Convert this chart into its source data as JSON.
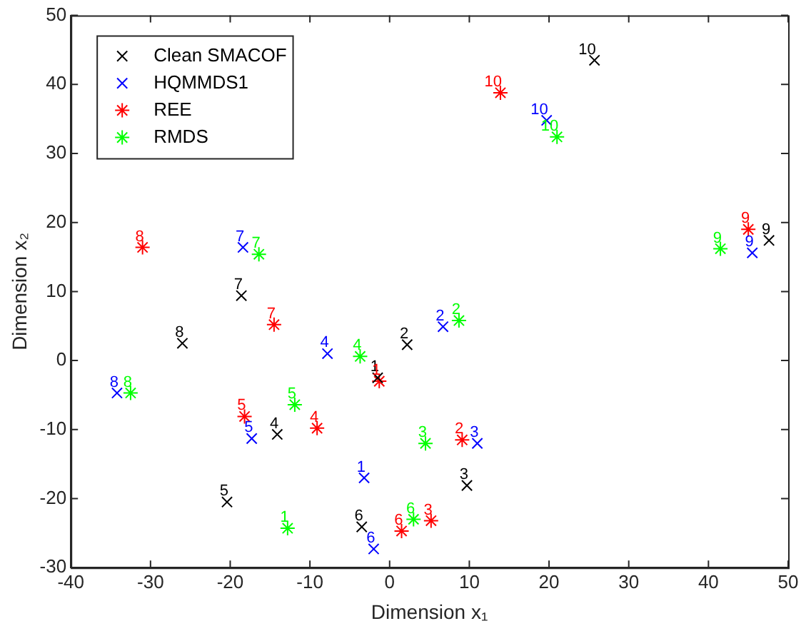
{
  "chart_data": {
    "type": "scatter",
    "xlabel": "Dimension x₁",
    "ylabel": "Dimension x₂",
    "xlim": [
      -40,
      50
    ],
    "xticks": [
      -40,
      -30,
      -20,
      -10,
      0,
      10,
      20,
      30,
      40,
      50
    ],
    "ylim": [
      -30,
      50
    ],
    "yticks": [
      -30,
      -20,
      -10,
      0,
      10,
      20,
      30,
      40,
      50
    ],
    "grid": false,
    "legend": "top left",
    "series": [
      {
        "name": "Clean SMACOF",
        "color": "#000000",
        "x": [
          -1.5,
          2.2,
          9.7,
          -14.1,
          -20.4,
          -3.5,
          -18.6,
          -26,
          47.6,
          25.7
        ],
        "values": [
          -2.5,
          2.3,
          -18.1,
          -10.7,
          -20.5,
          -24.1,
          9.4,
          2.5,
          17.4,
          43.5
        ]
      },
      {
        "name": "HQMMDS1",
        "color": "#0000ff",
        "x": [
          -3.2,
          6.7,
          11,
          -7.8,
          -17.3,
          -2,
          -18.4,
          -34.2,
          45.5,
          19.7
        ],
        "values": [
          -17,
          4.9,
          -12,
          1,
          -11.3,
          -27.3,
          16.4,
          -4.7,
          15.6,
          34.8
        ]
      },
      {
        "name": "REE",
        "color": "#ff0000",
        "marker": "cross",
        "x": [
          -1.3,
          9.1,
          5.2,
          -9.1,
          -18.2,
          1.5,
          -14.5,
          -31,
          45,
          13.9
        ],
        "values": [
          -3,
          -11.5,
          -23.2,
          -9.8,
          -8.1,
          -24.7,
          5.2,
          16.4,
          19,
          38.8
        ]
      },
      {
        "name": "RMDS",
        "color": "#00ff00",
        "marker": "cross",
        "x": [
          -12.8,
          8.7,
          4.5,
          -3.7,
          -11.9,
          3,
          -16.4,
          -32.5,
          41.5,
          21
        ],
        "values": [
          -24.3,
          5.8,
          -12,
          0.6,
          -6.4,
          -23,
          15.4,
          -4.7,
          16.2,
          32.4
        ]
      }
    ],
    "annotations": [
      {
        "text": "1",
        "x": -1.5,
        "y": -2.5
      },
      {
        "text": "2",
        "x": 2.2,
        "y": 2.3
      },
      {
        "text": "3",
        "x": 9.7,
        "y": -18.1
      },
      {
        "text": "4",
        "x": -14.1,
        "y": -10.7
      },
      {
        "text": "5",
        "x": -20.4,
        "y": -20.5
      },
      {
        "text": "6",
        "x": -3.5,
        "y": -24.1
      },
      {
        "text": "7",
        "x": -18.6,
        "y": 9.4
      },
      {
        "text": "8",
        "x": -26,
        "y": 2.5
      },
      {
        "text": "9",
        "x": 47.6,
        "y": 17.4
      },
      {
        "text": "10",
        "x": 25.7,
        "y": 43.5
      },
      {
        "text": "1",
        "x": -3.2,
        "y": -17
      },
      {
        "text": "2",
        "x": 6.7,
        "y": 4.9
      },
      {
        "text": "3",
        "x": 11,
        "y": -12
      },
      {
        "text": "4",
        "x": -7.8,
        "y": 1
      },
      {
        "text": "5",
        "x": -17.3,
        "y": -11.3
      },
      {
        "text": "6",
        "x": -2,
        "y": -27.3
      },
      {
        "text": "7",
        "x": -18.4,
        "y": 16.4
      },
      {
        "text": "8",
        "x": -34.2,
        "y": -4.7
      },
      {
        "text": "9",
        "x": 45.5,
        "y": 15.6
      },
      {
        "text": "10",
        "x": 19.7,
        "y": 34.8
      },
      {
        "text": "1",
        "x": -1.3,
        "y": -3
      },
      {
        "text": "2",
        "x": 9.1,
        "y": -11.5
      },
      {
        "text": "3",
        "x": 5.2,
        "y": -23.2
      },
      {
        "text": "4",
        "x": -9.1,
        "y": -9.8
      },
      {
        "text": "5",
        "x": -18.2,
        "y": -8.1
      },
      {
        "text": "6",
        "x": 1.5,
        "y": -24.7
      },
      {
        "text": "7",
        "x": -14.5,
        "y": 5.2
      },
      {
        "text": "8",
        "x": -31,
        "y": 16.4
      },
      {
        "text": "9",
        "x": 45,
        "y": 19
      },
      {
        "text": "10",
        "x": 13.9,
        "y": 38.8
      },
      {
        "text": "1",
        "x": -12.8,
        "y": -24.3
      },
      {
        "text": "2",
        "x": 8.7,
        "y": 5.8
      },
      {
        "text": "3",
        "x": 4.5,
        "y": -12
      },
      {
        "text": "4",
        "x": -3.7,
        "y": 0.6
      },
      {
        "text": "5",
        "x": -11.9,
        "y": -6.4
      },
      {
        "text": "6",
        "x": 3,
        "y": -23
      },
      {
        "text": "7",
        "x": -16.4,
        "y": 15.4
      },
      {
        "text": "8",
        "x": -32.5,
        "y": -4.7
      },
      {
        "text": "9",
        "x": 41.5,
        "y": 16.2
      },
      {
        "text": "10",
        "x": 21,
        "y": 32.4
      }
    ]
  }
}
